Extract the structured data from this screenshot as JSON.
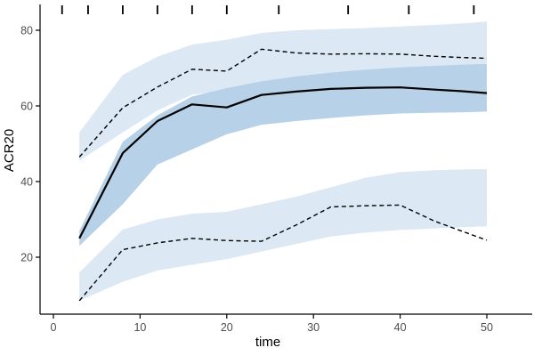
{
  "chart_data": {
    "type": "line",
    "title": "",
    "xlabel": "time",
    "ylabel": "ACR20",
    "x_ticks": [
      0,
      10,
      20,
      30,
      40,
      50
    ],
    "y_ticks": [
      20,
      40,
      60,
      80
    ],
    "xlim": [
      -1.5,
      55
    ],
    "ylim": [
      5,
      87
    ],
    "grid": false,
    "legend": "none",
    "x": [
      3,
      8,
      12,
      16,
      20,
      24,
      28,
      32,
      36,
      40,
      44,
      47,
      50
    ],
    "series": [
      {
        "name": "mean-estimate",
        "line_style": "solid",
        "color": "#000000",
        "values": [
          25,
          47.5,
          56,
          60.4,
          59.6,
          62.9,
          63.8,
          64.5,
          64.8,
          64.9,
          64.3,
          63.9,
          63.4
        ]
      },
      {
        "name": "upper-bound",
        "line_style": "dashed",
        "color": "#000000",
        "values": [
          46.5,
          59.5,
          65,
          69.7,
          69.2,
          75,
          74,
          73.7,
          73.8,
          73.7,
          73.1,
          72.8,
          72.6
        ]
      },
      {
        "name": "lower-bound",
        "line_style": "dashed",
        "color": "#000000",
        "values": [
          8.5,
          22,
          23.8,
          25,
          24.4,
          24.2,
          28.5,
          33.3,
          33.6,
          33.8,
          29.5,
          27,
          24.5
        ]
      }
    ],
    "bands": [
      {
        "name": "upper-confidence-band",
        "shade": "light",
        "upper": [
          53,
          68.2,
          73,
          76.2,
          77.5,
          79.3,
          80,
          80.3,
          80.6,
          81,
          81.4,
          81.8,
          82.3
        ],
        "lower": [
          45.5,
          53,
          58.8,
          63,
          64,
          65.5,
          66.5,
          67.5,
          68.3,
          69,
          69.8,
          70.5,
          71.2
        ]
      },
      {
        "name": "lower-confidence-band",
        "shade": "light",
        "upper": [
          16,
          27.3,
          30,
          31.5,
          32,
          34,
          36,
          38.5,
          41,
          42.5,
          43,
          43.2,
          43.3
        ],
        "lower": [
          8.5,
          13.5,
          16.5,
          18,
          19.5,
          21.5,
          23.5,
          25.5,
          26.5,
          27.2,
          27.6,
          27.9,
          28.2
        ]
      },
      {
        "name": "mean-confidence-band",
        "shade": "dark",
        "upper": [
          27,
          50.5,
          57.5,
          62.5,
          64.7,
          66.5,
          67.8,
          68.8,
          69.6,
          70.2,
          70.6,
          70.9,
          71.1
        ],
        "lower": [
          23,
          34,
          44.5,
          48.5,
          52.5,
          55,
          56,
          56.8,
          57.5,
          58,
          58.2,
          58.3,
          58.5
        ]
      }
    ],
    "rug_top_x": [
      1,
      4,
      8,
      12,
      16,
      20,
      26,
      34,
      41,
      48.5
    ]
  },
  "colors": {
    "band_light": "#dce8f4",
    "band_dark": "#b7d1e8",
    "line": "#000000",
    "axis_line": "#000000",
    "tick_label": "#4d4d4d",
    "axis_title": "#1a1a1a"
  }
}
